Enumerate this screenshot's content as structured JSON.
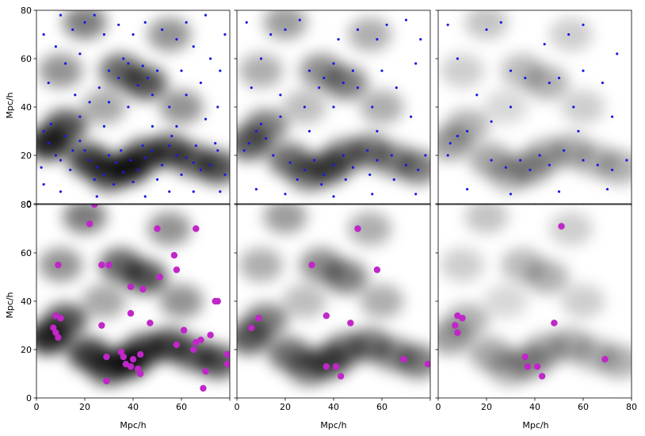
{
  "figure": {
    "x_axis_label": "Mpc/h",
    "y_axis_label": "Mpc/h"
  },
  "chart_data": {
    "type": "scatter",
    "layout": "2 rows x 3 columns of panels sharing axes; grayscale density field background",
    "xlim": [
      0,
      80
    ],
    "ylim": [
      0,
      80
    ],
    "x_ticks": [
      0,
      20,
      40,
      60,
      80
    ],
    "y_ticks": [
      0,
      20,
      40,
      60,
      80
    ],
    "xlabel": "Mpc/h",
    "ylabel": "Mpc/h",
    "grid": false,
    "colors": {
      "top_points": "#1a1ae6",
      "bottom_points": "#c026c8",
      "density": "#000000"
    },
    "density_blobs": [
      {
        "x": 5,
        "y": 25,
        "w": 1.0
      },
      {
        "x": 12,
        "y": 32,
        "w": 0.8
      },
      {
        "x": 22,
        "y": 18,
        "w": 0.9
      },
      {
        "x": 30,
        "y": 12,
        "w": 0.8
      },
      {
        "x": 38,
        "y": 15,
        "w": 1.0
      },
      {
        "x": 45,
        "y": 20,
        "w": 0.8
      },
      {
        "x": 55,
        "y": 22,
        "w": 0.8
      },
      {
        "x": 65,
        "y": 18,
        "w": 0.7
      },
      {
        "x": 75,
        "y": 15,
        "w": 0.8
      },
      {
        "x": 35,
        "y": 55,
        "w": 0.7
      },
      {
        "x": 45,
        "y": 50,
        "w": 0.8
      },
      {
        "x": 20,
        "y": 75,
        "w": 0.6
      },
      {
        "x": 55,
        "y": 70,
        "w": 0.5
      },
      {
        "x": 10,
        "y": 55,
        "w": 0.5
      },
      {
        "x": 60,
        "y": 40,
        "w": 0.5
      },
      {
        "x": 28,
        "y": 40,
        "w": 0.4
      }
    ],
    "panels": [
      {
        "row": 0,
        "col": 0,
        "density_level": 1.0,
        "marker": "small",
        "color": "#1a1ae6",
        "points": [
          [
            5,
            25
          ],
          [
            8,
            20
          ],
          [
            3,
            30
          ],
          [
            12,
            28
          ],
          [
            15,
            22
          ],
          [
            10,
            18
          ],
          [
            6,
            33
          ],
          [
            2,
            15
          ],
          [
            18,
            26
          ],
          [
            14,
            14
          ],
          [
            22,
            18
          ],
          [
            25,
            15
          ],
          [
            28,
            12
          ],
          [
            30,
            20
          ],
          [
            33,
            17
          ],
          [
            36,
            13
          ],
          [
            39,
            18
          ],
          [
            42,
            14
          ],
          [
            45,
            19
          ],
          [
            48,
            22
          ],
          [
            52,
            16
          ],
          [
            55,
            24
          ],
          [
            58,
            20
          ],
          [
            62,
            19
          ],
          [
            65,
            17
          ],
          [
            68,
            14
          ],
          [
            72,
            16
          ],
          [
            75,
            22
          ],
          [
            78,
            12
          ],
          [
            24,
            10
          ],
          [
            32,
            8
          ],
          [
            40,
            9
          ],
          [
            50,
            10
          ],
          [
            60,
            12
          ],
          [
            20,
            22
          ],
          [
            35,
            22
          ],
          [
            44,
            24
          ],
          [
            56,
            28
          ],
          [
            66,
            24
          ],
          [
            74,
            25
          ],
          [
            30,
            55
          ],
          [
            34,
            52
          ],
          [
            38,
            58
          ],
          [
            42,
            49
          ],
          [
            46,
            52
          ],
          [
            50,
            55
          ],
          [
            36,
            60
          ],
          [
            44,
            57
          ],
          [
            26,
            48
          ],
          [
            48,
            45
          ],
          [
            20,
            75
          ],
          [
            24,
            78
          ],
          [
            15,
            72
          ],
          [
            28,
            70
          ],
          [
            45,
            75
          ],
          [
            52,
            72
          ],
          [
            58,
            68
          ],
          [
            62,
            75
          ],
          [
            70,
            78
          ],
          [
            8,
            65
          ],
          [
            12,
            58
          ],
          [
            5,
            50
          ],
          [
            16,
            45
          ],
          [
            22,
            42
          ],
          [
            30,
            42
          ],
          [
            38,
            40
          ],
          [
            55,
            40
          ],
          [
            62,
            45
          ],
          [
            68,
            50
          ],
          [
            72,
            60
          ],
          [
            76,
            55
          ],
          [
            78,
            70
          ],
          [
            65,
            65
          ],
          [
            40,
            70
          ],
          [
            34,
            74
          ],
          [
            10,
            78
          ],
          [
            3,
            70
          ],
          [
            18,
            62
          ],
          [
            60,
            55
          ],
          [
            70,
            35
          ],
          [
            75,
            40
          ],
          [
            55,
            5
          ],
          [
            65,
            5
          ],
          [
            45,
            3
          ],
          [
            25,
            3
          ],
          [
            10,
            5
          ],
          [
            3,
            8
          ],
          [
            76,
            5
          ],
          [
            58,
            32
          ],
          [
            48,
            32
          ],
          [
            28,
            32
          ],
          [
            18,
            36
          ]
        ]
      },
      {
        "row": 0,
        "col": 1,
        "density_level": 0.75,
        "marker": "small",
        "color": "#1a1ae6",
        "points": [
          [
            5,
            25
          ],
          [
            8,
            30
          ],
          [
            3,
            22
          ],
          [
            12,
            27
          ],
          [
            10,
            33
          ],
          [
            15,
            20
          ],
          [
            22,
            17
          ],
          [
            28,
            14
          ],
          [
            32,
            18
          ],
          [
            36,
            12
          ],
          [
            40,
            16
          ],
          [
            44,
            20
          ],
          [
            48,
            15
          ],
          [
            54,
            22
          ],
          [
            58,
            18
          ],
          [
            64,
            20
          ],
          [
            70,
            16
          ],
          [
            75,
            14
          ],
          [
            78,
            20
          ],
          [
            25,
            10
          ],
          [
            35,
            8
          ],
          [
            45,
            10
          ],
          [
            55,
            12
          ],
          [
            65,
            10
          ],
          [
            30,
            55
          ],
          [
            36,
            52
          ],
          [
            44,
            50
          ],
          [
            48,
            55
          ],
          [
            40,
            58
          ],
          [
            34,
            48
          ],
          [
            50,
            48
          ],
          [
            20,
            72
          ],
          [
            26,
            76
          ],
          [
            50,
            72
          ],
          [
            58,
            68
          ],
          [
            62,
            74
          ],
          [
            70,
            76
          ],
          [
            10,
            60
          ],
          [
            6,
            48
          ],
          [
            18,
            45
          ],
          [
            28,
            40
          ],
          [
            40,
            40
          ],
          [
            56,
            40
          ],
          [
            66,
            48
          ],
          [
            74,
            58
          ],
          [
            76,
            68
          ],
          [
            42,
            68
          ],
          [
            14,
            70
          ],
          [
            4,
            75
          ],
          [
            60,
            55
          ],
          [
            72,
            36
          ],
          [
            56,
            4
          ],
          [
            40,
            3
          ],
          [
            20,
            4
          ],
          [
            8,
            6
          ],
          [
            74,
            4
          ],
          [
            58,
            30
          ],
          [
            30,
            30
          ],
          [
            18,
            36
          ]
        ]
      },
      {
        "row": 0,
        "col": 2,
        "density_level": 0.45,
        "marker": "small",
        "color": "#1a1ae6",
        "points": [
          [
            5,
            25
          ],
          [
            8,
            28
          ],
          [
            4,
            20
          ],
          [
            12,
            30
          ],
          [
            22,
            18
          ],
          [
            28,
            15
          ],
          [
            34,
            18
          ],
          [
            38,
            14
          ],
          [
            42,
            20
          ],
          [
            46,
            16
          ],
          [
            52,
            22
          ],
          [
            60,
            18
          ],
          [
            66,
            16
          ],
          [
            72,
            14
          ],
          [
            78,
            18
          ],
          [
            30,
            55
          ],
          [
            36,
            52
          ],
          [
            46,
            50
          ],
          [
            50,
            52
          ],
          [
            20,
            72
          ],
          [
            26,
            75
          ],
          [
            54,
            70
          ],
          [
            60,
            74
          ],
          [
            8,
            60
          ],
          [
            16,
            45
          ],
          [
            30,
            40
          ],
          [
            56,
            40
          ],
          [
            68,
            50
          ],
          [
            74,
            62
          ],
          [
            44,
            66
          ],
          [
            4,
            74
          ],
          [
            60,
            55
          ],
          [
            72,
            36
          ],
          [
            50,
            5
          ],
          [
            30,
            4
          ],
          [
            12,
            6
          ],
          [
            70,
            6
          ],
          [
            58,
            30
          ],
          [
            22,
            34
          ]
        ]
      },
      {
        "row": 1,
        "col": 0,
        "density_level": 1.0,
        "marker": "large",
        "color": "#c026c8",
        "points": [
          [
            7,
            29
          ],
          [
            8,
            34
          ],
          [
            10,
            33
          ],
          [
            8,
            27
          ],
          [
            9,
            25
          ],
          [
            9,
            55
          ],
          [
            22,
            72
          ],
          [
            27,
            55
          ],
          [
            30,
            55
          ],
          [
            27,
            30
          ],
          [
            29,
            17
          ],
          [
            29,
            7
          ],
          [
            35,
            19
          ],
          [
            36,
            17
          ],
          [
            37,
            14
          ],
          [
            40,
            16
          ],
          [
            39,
            13
          ],
          [
            43,
            18
          ],
          [
            42,
            12
          ],
          [
            43,
            10
          ],
          [
            39,
            46
          ],
          [
            44,
            45
          ],
          [
            39,
            35
          ],
          [
            47,
            31
          ],
          [
            51,
            50
          ],
          [
            50,
            70
          ],
          [
            57,
            59
          ],
          [
            58,
            53
          ],
          [
            58,
            22
          ],
          [
            61,
            28
          ],
          [
            65,
            20
          ],
          [
            66,
            23
          ],
          [
            68,
            24
          ],
          [
            66,
            70
          ],
          [
            72,
            26
          ],
          [
            74,
            40
          ],
          [
            75,
            40
          ],
          [
            70,
            11
          ],
          [
            69,
            4
          ],
          [
            79,
            14
          ],
          [
            79,
            18
          ],
          [
            24,
            80
          ]
        ]
      },
      {
        "row": 1,
        "col": 1,
        "density_level": 0.75,
        "marker": "large",
        "color": "#c026c8",
        "points": [
          [
            6,
            29
          ],
          [
            9,
            33
          ],
          [
            31,
            55
          ],
          [
            37,
            34
          ],
          [
            37,
            13
          ],
          [
            41,
            13
          ],
          [
            43,
            9
          ],
          [
            47,
            31
          ],
          [
            50,
            70
          ],
          [
            58,
            53
          ],
          [
            69,
            16
          ],
          [
            79,
            14
          ]
        ]
      },
      {
        "row": 1,
        "col": 2,
        "density_level": 0.45,
        "marker": "large",
        "color": "#c026c8",
        "points": [
          [
            7,
            30
          ],
          [
            8,
            34
          ],
          [
            10,
            33
          ],
          [
            8,
            27
          ],
          [
            36,
            17
          ],
          [
            37,
            13
          ],
          [
            41,
            13
          ],
          [
            43,
            9
          ],
          [
            48,
            31
          ],
          [
            51,
            71
          ],
          [
            69,
            16
          ]
        ]
      }
    ]
  }
}
